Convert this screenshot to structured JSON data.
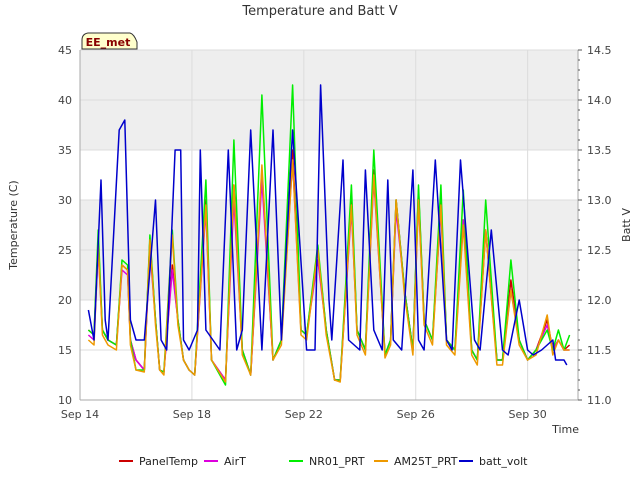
{
  "chart_data": {
    "type": "line",
    "title": "Temperature and Batt V",
    "xlabel": "Time",
    "ylabel": "Temperature (C)",
    "y2label": "Batt V",
    "xlim": [
      0,
      17.8
    ],
    "ylim": [
      10,
      45
    ],
    "y2lim": [
      11.0,
      14.5
    ],
    "x_ticks": [
      {
        "x": 0,
        "label": "Sep 14"
      },
      {
        "x": 4,
        "label": "Sep 18"
      },
      {
        "x": 8,
        "label": "Sep 22"
      },
      {
        "x": 12,
        "label": "Sep 26"
      },
      {
        "x": 16,
        "label": "Sep 30"
      }
    ],
    "y_ticks": [
      10,
      15,
      20,
      25,
      30,
      35,
      40,
      45
    ],
    "y2_ticks": [
      11.0,
      11.5,
      12.0,
      12.5,
      13.0,
      13.5,
      14.0,
      14.5
    ],
    "grid": true,
    "shaded_bands": [
      [
        20,
        30
      ],
      [
        35,
        45
      ]
    ],
    "station_label": "EE_met",
    "legend_position": "bottom",
    "colors": {
      "band": "#eeeeee",
      "grid": "#dcdcdc",
      "axis": "#aaaaaa",
      "station_bg": "#ffffcc"
    },
    "series": [
      {
        "name": "PanelTemp",
        "color": "#cc0000",
        "axis": "left",
        "x": [
          0.3,
          0.5,
          0.65,
          0.8,
          1.0,
          1.3,
          1.5,
          1.7,
          1.8,
          2.0,
          2.3,
          2.5,
          2.7,
          2.85,
          3.0,
          3.3,
          3.5,
          3.7,
          3.9,
          4.1,
          4.5,
          4.7,
          5.2,
          5.5,
          5.8,
          6.1,
          6.5,
          6.9,
          7.2,
          7.6,
          7.9,
          8.1,
          8.5,
          8.8,
          9.1,
          9.3,
          9.7,
          9.9,
          10.2,
          10.5,
          10.9,
          11.1,
          11.3,
          11.6,
          11.9,
          12.1,
          12.3,
          12.6,
          12.9,
          13.1,
          13.4,
          13.7,
          14.0,
          14.2,
          14.5,
          14.9,
          15.1,
          15.4,
          15.7,
          16.0,
          16.3,
          16.7,
          16.9,
          17.1,
          17.3,
          17.5
        ],
        "y": [
          17,
          16.5,
          26,
          17,
          16,
          15.5,
          23.5,
          23,
          16,
          14,
          13,
          26,
          18,
          13,
          12.8,
          23.5,
          18,
          14,
          13,
          12.5,
          30,
          14,
          12,
          31.5,
          15,
          12.5,
          33,
          14,
          16,
          35,
          17,
          16.5,
          25,
          17,
          12,
          12,
          30,
          17,
          15,
          33,
          14.5,
          16,
          30,
          21,
          15,
          31,
          18,
          16,
          30,
          16,
          15,
          28,
          15,
          14,
          27,
          14,
          14,
          22,
          16,
          14,
          15,
          18,
          15,
          16,
          15,
          15.5
        ]
      },
      {
        "name": "AirT",
        "color": "#dd00dd",
        "axis": "left",
        "x": [
          0.3,
          0.5,
          0.65,
          0.8,
          1.0,
          1.3,
          1.5,
          1.7,
          1.8,
          2.0,
          2.3,
          2.5,
          2.7,
          2.85,
          3.0,
          3.3,
          3.5,
          3.7,
          3.9,
          4.1,
          4.5,
          4.7,
          5.2,
          5.5,
          5.8,
          6.1,
          6.5,
          6.9,
          7.2,
          7.6,
          7.9,
          8.1,
          8.5,
          8.8,
          9.1,
          9.3,
          9.7,
          9.9,
          10.2,
          10.5,
          10.9,
          11.1,
          11.3,
          11.6,
          11.9,
          12.1,
          12.3,
          12.6,
          12.9,
          13.1,
          13.4,
          13.7,
          14.0,
          14.2,
          14.5,
          14.9,
          15.1,
          15.4,
          15.7,
          16.0,
          16.3,
          16.7,
          16.9,
          17.1,
          17.3,
          17.5
        ],
        "y": [
          16.5,
          16,
          25,
          17,
          16,
          15.5,
          23,
          22.5,
          16,
          14,
          13,
          25,
          18,
          13,
          12.8,
          23,
          18,
          14,
          13,
          12.5,
          29,
          14,
          12,
          30,
          15,
          12.5,
          32,
          14,
          16,
          34,
          17,
          16.5,
          24,
          17,
          12,
          12,
          29,
          17,
          15,
          32,
          14.5,
          16,
          29,
          21,
          15,
          30,
          18,
          16,
          29,
          16,
          15,
          28,
          15,
          14,
          27,
          14,
          14,
          21,
          16,
          14,
          15,
          17.5,
          15,
          16,
          15,
          15
        ]
      },
      {
        "name": "NR01_PRT",
        "color": "#00ee00",
        "axis": "left",
        "x": [
          0.3,
          0.5,
          0.65,
          0.8,
          1.0,
          1.3,
          1.5,
          1.7,
          1.8,
          2.0,
          2.3,
          2.5,
          2.7,
          2.85,
          3.0,
          3.3,
          3.5,
          3.7,
          3.9,
          4.1,
          4.5,
          4.7,
          5.2,
          5.5,
          5.8,
          6.1,
          6.5,
          6.9,
          7.2,
          7.6,
          7.9,
          8.1,
          8.5,
          8.8,
          9.1,
          9.3,
          9.7,
          9.9,
          10.2,
          10.5,
          10.9,
          11.1,
          11.3,
          11.6,
          11.9,
          12.1,
          12.3,
          12.6,
          12.9,
          13.1,
          13.4,
          13.7,
          14.0,
          14.2,
          14.5,
          14.9,
          15.1,
          15.4,
          15.7,
          16.0,
          16.3,
          16.7,
          16.9,
          17.1,
          17.3,
          17.5
        ],
        "y": [
          17,
          16.5,
          27,
          17,
          16,
          15.5,
          24,
          23.5,
          16,
          13,
          13,
          26.5,
          18,
          13,
          12.8,
          27,
          18,
          14,
          13,
          12.5,
          32,
          14,
          11.5,
          36,
          15,
          12.5,
          40.5,
          14,
          16,
          41.5,
          17,
          16.5,
          25.5,
          17,
          12,
          12,
          31.5,
          17,
          15,
          35,
          14.5,
          16,
          30,
          21,
          15,
          31.5,
          18,
          16,
          31.5,
          16,
          15,
          31,
          15,
          14,
          30,
          14,
          14,
          24,
          16,
          14,
          15,
          17,
          15,
          17,
          15,
          16.5
        ]
      },
      {
        "name": "AM25T_PRT",
        "color": "#ee9900",
        "axis": "left",
        "x": [
          0.3,
          0.5,
          0.65,
          0.8,
          1.0,
          1.3,
          1.5,
          1.7,
          1.8,
          2.0,
          2.3,
          2.5,
          2.7,
          2.85,
          3.0,
          3.3,
          3.5,
          3.7,
          3.9,
          4.1,
          4.5,
          4.7,
          5.2,
          5.5,
          5.8,
          6.1,
          6.5,
          6.9,
          7.2,
          7.6,
          7.9,
          8.1,
          8.5,
          8.8,
          9.1,
          9.3,
          9.7,
          9.9,
          10.2,
          10.5,
          10.9,
          11.1,
          11.3,
          11.6,
          11.9,
          12.1,
          12.3,
          12.6,
          12.9,
          13.1,
          13.4,
          13.7,
          14.0,
          14.2,
          14.5,
          14.9,
          15.1,
          15.4,
          15.7,
          16.0,
          16.3,
          16.7,
          16.9,
          17.1,
          17.3,
          17.5
        ],
        "y": [
          16,
          15.5,
          25.5,
          16.5,
          15.5,
          15,
          23.5,
          23,
          15.5,
          13,
          12.8,
          26,
          17.5,
          13,
          12.5,
          26.5,
          17.5,
          14,
          13,
          12.5,
          29.5,
          14,
          11.8,
          31.5,
          14.5,
          12.5,
          33.5,
          14,
          15.5,
          34,
          16.5,
          16,
          25,
          16.5,
          12,
          11.8,
          29.5,
          16.5,
          14.5,
          32.5,
          14.2,
          15.5,
          30,
          20.5,
          14.5,
          30,
          17.5,
          15.5,
          29.5,
          15.5,
          14.5,
          27.5,
          14.5,
          13.5,
          27,
          13.5,
          13.5,
          21,
          15.5,
          14,
          14.5,
          18.5,
          14.5,
          16,
          15,
          15
        ]
      },
      {
        "name": "batt_volt",
        "color": "#0000cc",
        "axis": "right",
        "x": [
          0.3,
          0.5,
          0.75,
          0.9,
          1.0,
          1.4,
          1.6,
          1.8,
          2.0,
          2.3,
          2.7,
          2.9,
          3.1,
          3.4,
          3.6,
          3.7,
          3.9,
          4.2,
          4.3,
          4.5,
          5.0,
          5.3,
          5.6,
          5.8,
          6.1,
          6.5,
          6.9,
          7.2,
          7.6,
          8.1,
          8.4,
          8.6,
          8.9,
          9.0,
          9.4,
          9.6,
          10.0,
          10.2,
          10.5,
          10.8,
          11.0,
          11.2,
          11.5,
          11.9,
          12.1,
          12.3,
          12.7,
          13.1,
          13.3,
          13.6,
          14.1,
          14.3,
          14.7,
          15.1,
          15.3,
          15.7,
          16.0,
          16.2,
          16.5,
          16.9,
          17.0,
          17.3,
          17.4
        ],
        "y": [
          11.9,
          11.6,
          13.2,
          11.8,
          11.6,
          13.7,
          13.8,
          11.8,
          11.6,
          11.6,
          13.0,
          11.6,
          11.5,
          13.5,
          13.5,
          11.6,
          11.5,
          11.7,
          13.5,
          11.7,
          11.5,
          13.5,
          11.5,
          11.7,
          13.7,
          11.5,
          13.7,
          11.6,
          13.7,
          11.5,
          11.5,
          14.15,
          12.0,
          11.6,
          13.4,
          11.6,
          11.5,
          13.3,
          11.7,
          11.5,
          13.2,
          11.6,
          11.5,
          13.3,
          11.6,
          11.5,
          13.4,
          11.6,
          11.5,
          13.4,
          11.6,
          11.5,
          12.7,
          11.5,
          11.45,
          12.0,
          11.5,
          11.45,
          11.5,
          11.6,
          11.4,
          11.4,
          11.35
        ]
      }
    ]
  }
}
